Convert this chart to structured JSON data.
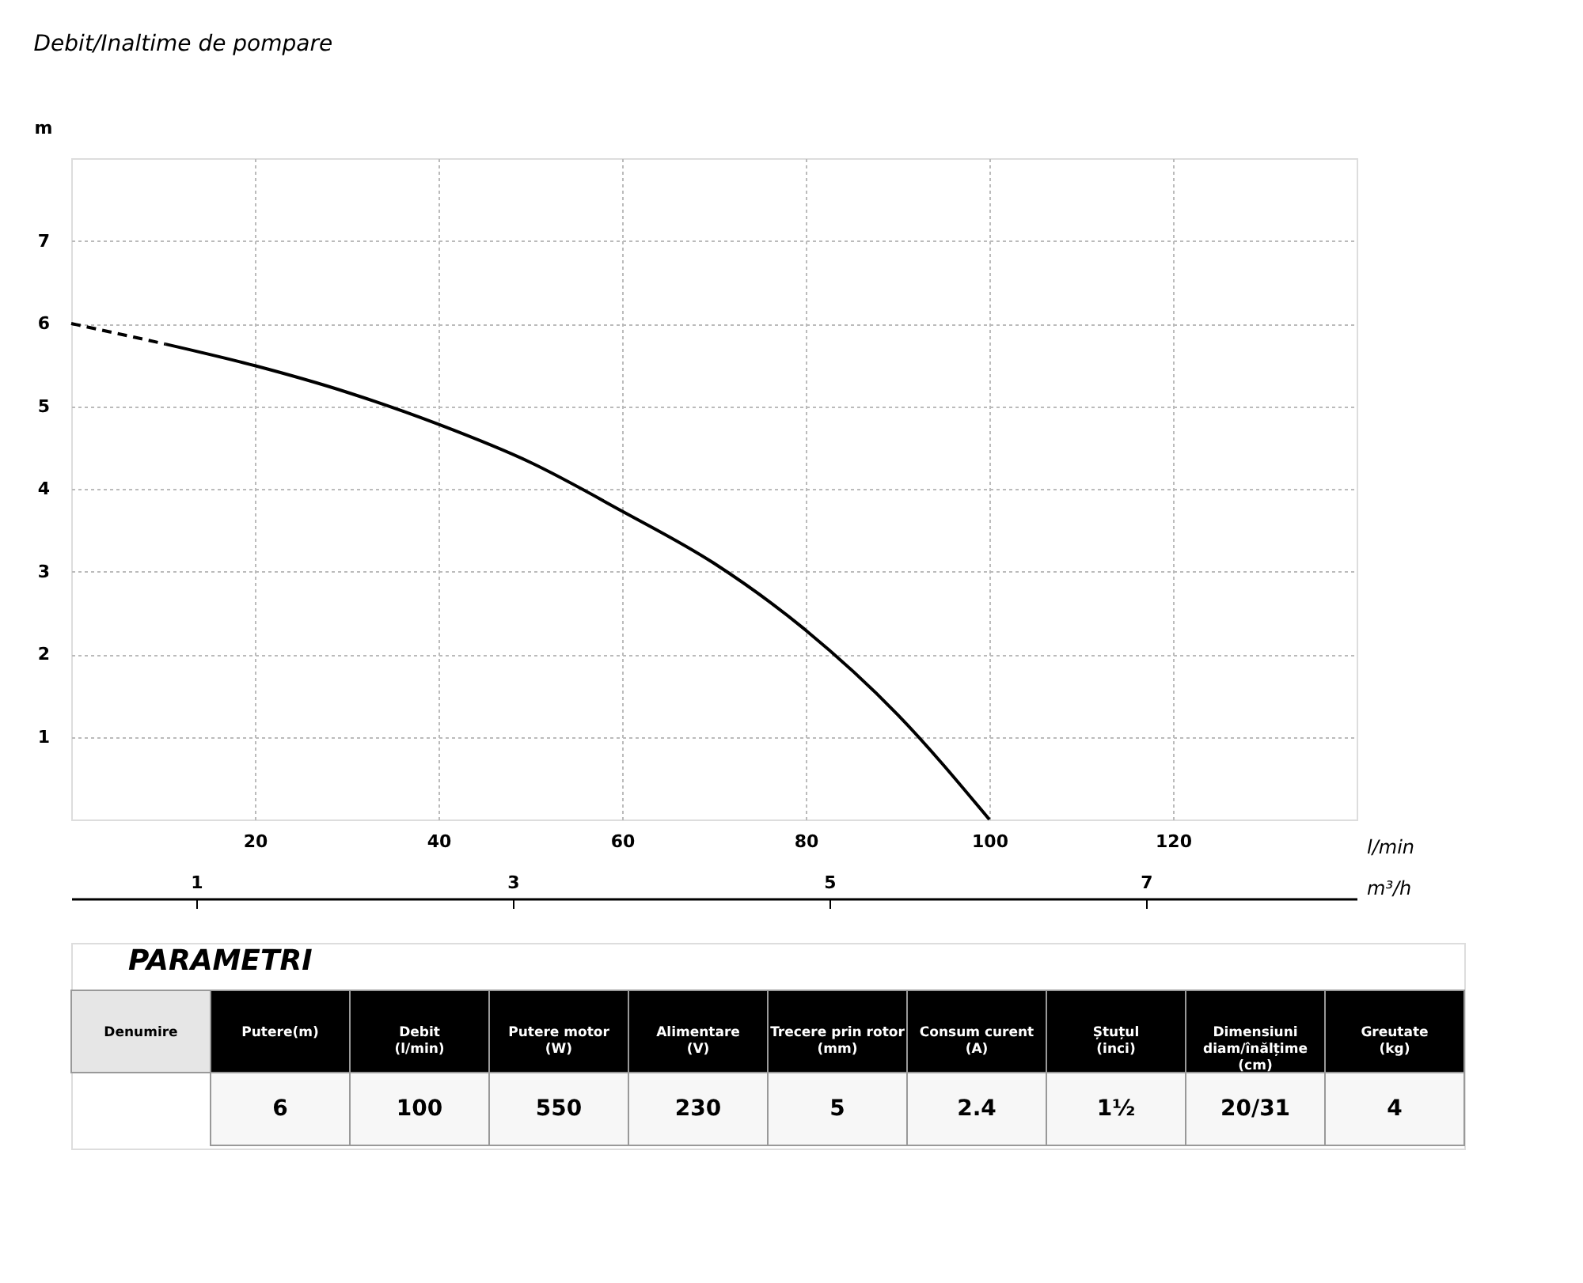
{
  "chart_data": {
    "type": "line",
    "title": "Debit/Inaltime de pompare",
    "xlabel": "l/min",
    "ylabel": "m",
    "x2label": "m³/h",
    "xlim": [
      0,
      140
    ],
    "xticks": [
      20,
      40,
      60,
      80,
      100,
      120
    ],
    "ylim": [
      0,
      8
    ],
    "yticks": [
      1,
      2,
      3,
      4,
      5,
      6,
      7
    ],
    "x2lim": [
      0.21,
      8.33
    ],
    "x2ticks": [
      1,
      3,
      5,
      7
    ],
    "grid": true,
    "series": [
      {
        "color": "#000000",
        "line_style": "dashed",
        "x": [
          0,
          5,
          10.3
        ],
        "values": [
          6.0,
          5.88,
          5.75
        ]
      },
      {
        "color": "#000000",
        "line_style": "solid",
        "x": [
          10.3,
          20,
          30,
          40,
          50,
          60,
          70,
          80,
          90,
          100
        ],
        "values": [
          5.75,
          5.49,
          5.17,
          4.78,
          4.32,
          3.73,
          3.1,
          2.29,
          1.27,
          0
        ]
      }
    ],
    "annotations": [
      "PARAMETRI",
      "Denumire",
      "Putere(m)",
      "Debit\n(l/min)",
      "Putere motor\n(W)",
      "Alimentare\n(V)",
      "Trecere prin rotor\n(mm)",
      "Consum curent\n(A)",
      "Ștuțul\n(inci)",
      "Dimensiuni\ndiam/înălțime\n(cm)",
      "Greutate\n(kg)",
      "6",
      "100",
      "550",
      "230",
      "5",
      "2.4",
      "1½",
      "20/31",
      "4"
    ]
  }
}
